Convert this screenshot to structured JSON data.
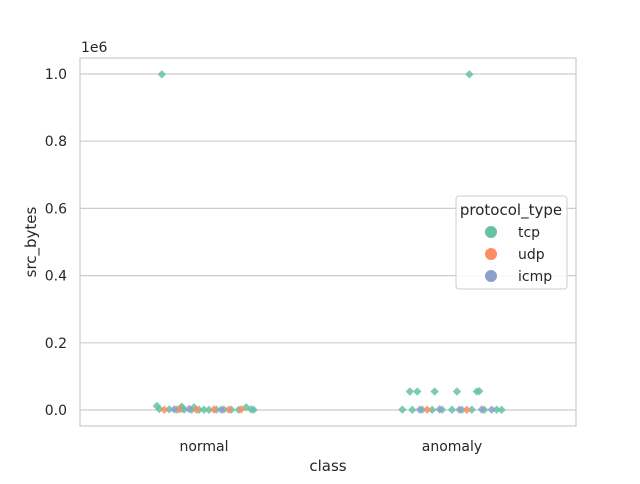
{
  "chart_data": {
    "type": "scatter",
    "title": "",
    "xlabel": "class",
    "ylabel": "src_bytes",
    "y_offset_label": "1e6",
    "categories": [
      "normal",
      "anomaly"
    ],
    "ylim": [
      -0.05,
      1.05
    ],
    "yticks": [
      0.0,
      0.2,
      0.4,
      0.6,
      0.8,
      1.0
    ],
    "ytick_labels": [
      "0.0",
      "0.2",
      "0.4",
      "0.6",
      "0.8",
      "1.0"
    ],
    "grid": true,
    "legend": {
      "title": "protocol_type",
      "placement": "center-right",
      "entries": [
        {
          "name": "tcp",
          "color": "#66c2a5"
        },
        {
          "name": "udp",
          "color": "#fc8d62"
        },
        {
          "name": "icmp",
          "color": "#8da0cb"
        }
      ]
    },
    "series": [
      {
        "name": "tcp",
        "color": "#66c2a5",
        "points": [
          {
            "category": "normal",
            "jitter": -0.17,
            "y": 0.999
          },
          {
            "category": "normal",
            "jitter": -0.19,
            "y": 0.012
          },
          {
            "category": "normal",
            "jitter": -0.09,
            "y": 0.01
          },
          {
            "category": "normal",
            "jitter": -0.04,
            "y": 0.008
          },
          {
            "category": "normal",
            "jitter": -0.09,
            "y": 0.004
          },
          {
            "category": "normal",
            "jitter": -0.18,
            "y": 0.003
          },
          {
            "category": "normal",
            "jitter": -0.14,
            "y": 0.002
          },
          {
            "category": "normal",
            "jitter": -0.11,
            "y": 0.001
          },
          {
            "category": "normal",
            "jitter": -0.08,
            "y": 0.001
          },
          {
            "category": "normal",
            "jitter": -0.05,
            "y": 0.0005
          },
          {
            "category": "normal",
            "jitter": -0.02,
            "y": 0.001
          },
          {
            "category": "normal",
            "jitter": 0.0,
            "y": 0.0008
          },
          {
            "category": "normal",
            "jitter": 0.02,
            "y": 0.0005
          },
          {
            "category": "normal",
            "jitter": 0.05,
            "y": 0.001
          },
          {
            "category": "normal",
            "jitter": 0.08,
            "y": 0.0015
          },
          {
            "category": "normal",
            "jitter": 0.11,
            "y": 0.001
          },
          {
            "category": "normal",
            "jitter": 0.14,
            "y": 0.0005
          },
          {
            "category": "normal",
            "jitter": 0.17,
            "y": 0.008
          },
          {
            "category": "normal",
            "jitter": 0.19,
            "y": 0.002
          },
          {
            "category": "normal",
            "jitter": 0.2,
            "y": 0.0005
          },
          {
            "category": "anomaly",
            "jitter": 1.07,
            "y": 0.999
          },
          {
            "category": "anomaly",
            "jitter": 0.83,
            "y": 0.055
          },
          {
            "category": "anomaly",
            "jitter": 0.86,
            "y": 0.055
          },
          {
            "category": "anomaly",
            "jitter": 0.93,
            "y": 0.055
          },
          {
            "category": "anomaly",
            "jitter": 1.02,
            "y": 0.055
          },
          {
            "category": "anomaly",
            "jitter": 1.1,
            "y": 0.055
          },
          {
            "category": "anomaly",
            "jitter": 1.11,
            "y": 0.056
          },
          {
            "category": "anomaly",
            "jitter": 0.8,
            "y": 0.001
          },
          {
            "category": "anomaly",
            "jitter": 0.84,
            "y": 0.0005
          },
          {
            "category": "anomaly",
            "jitter": 0.88,
            "y": 0.001
          },
          {
            "category": "anomaly",
            "jitter": 0.92,
            "y": 0.0005
          },
          {
            "category": "anomaly",
            "jitter": 0.96,
            "y": 0.001
          },
          {
            "category": "anomaly",
            "jitter": 1.0,
            "y": 0.0008
          },
          {
            "category": "anomaly",
            "jitter": 1.04,
            "y": 0.0005
          },
          {
            "category": "anomaly",
            "jitter": 1.08,
            "y": 0.001
          },
          {
            "category": "anomaly",
            "jitter": 1.13,
            "y": 0.0005
          },
          {
            "category": "anomaly",
            "jitter": 1.18,
            "y": 0.001
          },
          {
            "category": "anomaly",
            "jitter": 1.2,
            "y": 0.0005
          }
        ]
      },
      {
        "name": "udp",
        "color": "#fc8d62",
        "points": [
          {
            "category": "normal",
            "jitter": -0.16,
            "y": 0.001
          },
          {
            "category": "normal",
            "jitter": -0.1,
            "y": 0.002
          },
          {
            "category": "normal",
            "jitter": -0.03,
            "y": 0.001
          },
          {
            "category": "normal",
            "jitter": 0.04,
            "y": 0.0015
          },
          {
            "category": "normal",
            "jitter": 0.1,
            "y": 0.001
          },
          {
            "category": "normal",
            "jitter": 0.15,
            "y": 0.002
          },
          {
            "category": "anomaly",
            "jitter": 0.9,
            "y": 0.001
          },
          {
            "category": "anomaly",
            "jitter": 1.06,
            "y": 0.0005
          }
        ]
      },
      {
        "name": "icmp",
        "color": "#8da0cb",
        "points": [
          {
            "category": "normal",
            "jitter": -0.12,
            "y": 0.002
          },
          {
            "category": "normal",
            "jitter": -0.06,
            "y": 0.003
          },
          {
            "category": "normal",
            "jitter": 0.07,
            "y": 0.001
          },
          {
            "category": "anomaly",
            "jitter": 0.87,
            "y": 0.001
          },
          {
            "category": "anomaly",
            "jitter": 0.95,
            "y": 0.002
          },
          {
            "category": "anomaly",
            "jitter": 1.03,
            "y": 0.001
          },
          {
            "category": "anomaly",
            "jitter": 1.12,
            "y": 0.0015
          },
          {
            "category": "anomaly",
            "jitter": 1.16,
            "y": 0.001
          }
        ]
      }
    ]
  }
}
